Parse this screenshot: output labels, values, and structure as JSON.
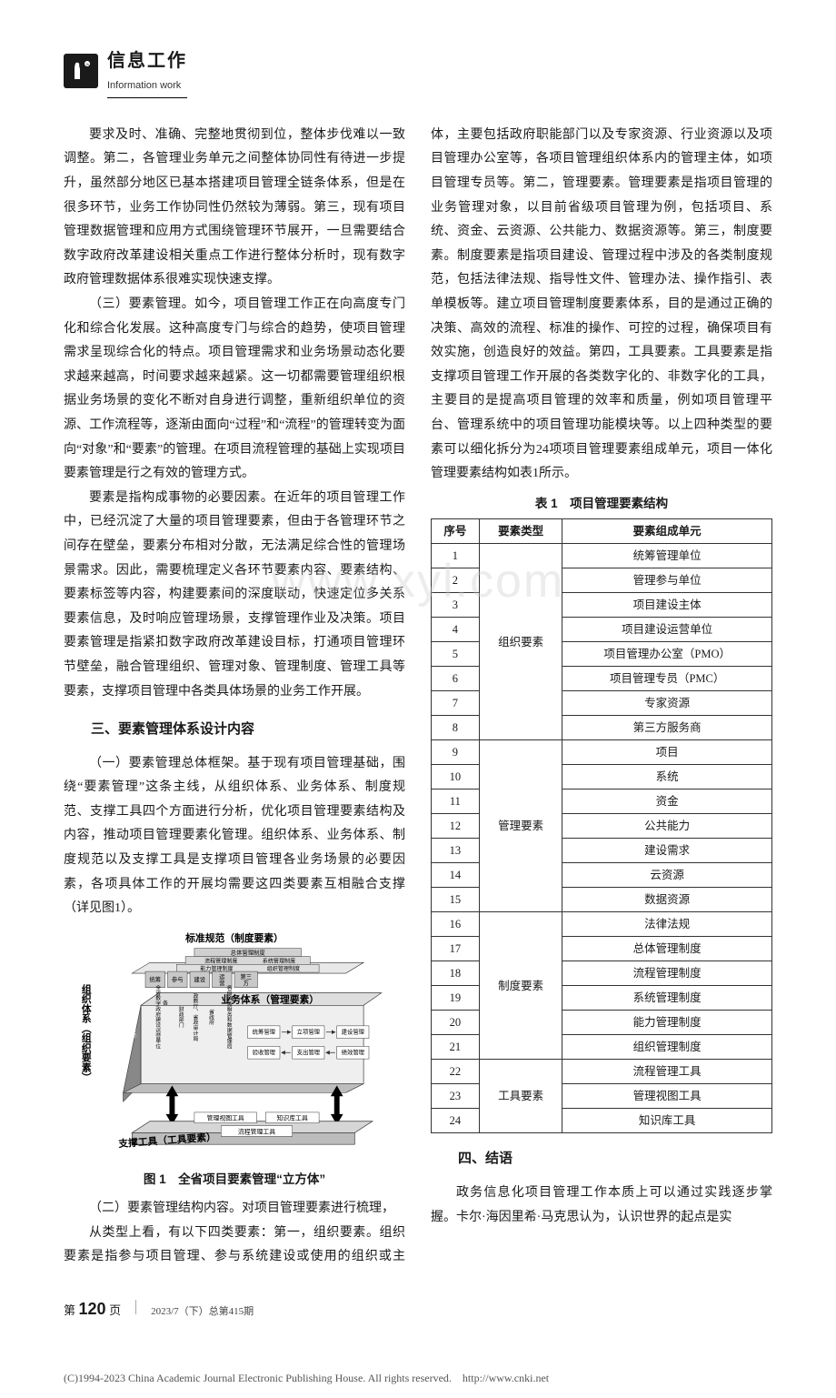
{
  "header": {
    "cn": "信息工作",
    "en": "Information work"
  },
  "watermark": "www.xyl.com",
  "left_paras": [
    "要求及时、准确、完整地贯彻到位，整体步伐难以一致调整。第二，各管理业务单元之间整体协同性有待进一步提升，虽然部分地区已基本搭建项目管理全链条体系，但是在很多环节，业务工作协同性仍然较为薄弱。第三，现有项目管理数据管理和应用方式围绕管理环节展开，一旦需要结合数字政府改革建设相关重点工作进行整体分析时，现有数字政府管理数据体系很难实现快速支撑。",
    "（三）要素管理。如今，项目管理工作正在向高度专门化和综合化发展。这种高度专门与综合的趋势，使项目管理需求呈现综合化的特点。项目管理需求和业务场景动态化要求越来越高，时间要求越来越紧。这一切都需要管理组织根据业务场景的变化不断对自身进行调整，重新组织单位的资源、工作流程等，逐渐由面向“过程”和“流程”的管理转变为面向“对象”和“要素”的管理。在项目流程管理的基础上实现项目要素管理是行之有效的管理方式。",
    "要素是指构成事物的必要因素。在近年的项目管理工作中，已经沉淀了大量的项目管理要素，但由于各管理环节之间存在壁垒，要素分布相对分散，无法满足综合性的管理场景需求。因此，需要梳理定义各环节要素内容、要素结构、要素标签等内容，构建要素间的深度联动，快速定位多关系要素信息，及时响应管理场景，支撑管理作业及决策。项目要素管理是指紧扣数字政府改革建设目标，打通项目管理环节壁垒，融合管理组织、管理对象、管理制度、管理工具等要素，支撑项目管理中各类具体场景的业务工作开展。"
  ],
  "section3_title": "三、要素管理体系设计内容",
  "section3_para1": "（一）要素管理总体框架。基于现有项目管理基础，围绕“要素管理”这条主线，从组织体系、业务体系、制度规范、支撑工具四个方面进行分析，优化项目管理要素结构及内容，推动项目管理要素化管理。组织体系、业务体系、制度规范以及支撑工具是支撑项目管理各业务场景的必要因素，各项具体工作的开展均需要这四类要素互相融合支撑（详见图1）。",
  "figure1_caption": "图 1　全省项目要素管理“立方体”",
  "figure1_labels": {
    "top": "标准规范（制度要素）",
    "left": "组织体系（组织要素）",
    "middle": "业务体系（管理要素）",
    "bottom_left": "支撑工具（工具要素）",
    "box_top1": "总体管理制度",
    "box_top2": "流程管理制度",
    "box_top3": "系统管理制度",
    "box_top4": "能力管理制度",
    "box_top5": "组织管理制度",
    "cubes_row1": [
      "统筹",
      "参与",
      "建设",
      "运营",
      "第三方"
    ],
    "cubes_label": "各组织实体",
    "vert_labels": [
      "全省数字政府建设运营单位",
      "第三方资源池",
      "财政部门",
      "政数厅",
      "省政府",
      "各级政务服务和数据管理局"
    ],
    "mid_row": [
      "统筹管理",
      "",
      "立项管理",
      "",
      "建设管理"
    ],
    "mid_row2": [
      "验收管理",
      "",
      "支出管理",
      "",
      "绩效管理"
    ],
    "bottom_boxes": [
      "管理视图工具",
      "知识库工具",
      "流程管理工具"
    ]
  },
  "para_2_after_fig": "（二）要素管理结构内容。对项目管理要素进行梳理，",
  "right_para1": "从类型上看，有以下四类要素：第一，组织要素。组织要素是指参与项目管理、参与系统建设或使用的组织或主体，主要包括政府职能部门以及专家资源、行业资源以及项目管理办公室等，各项目管理组织体系内的管理主体，如项目管理专员等。第二，管理要素。管理要素是指项目管理的业务管理对象，以目前省级项目管理为例，包括项目、系统、资金、云资源、公共能力、数据资源等。第三，制度要素。制度要素是指项目建设、管理过程中涉及的各类制度规范，包括法律法规、指导性文件、管理办法、操作指引、表单模板等。建立项目管理制度要素体系，目的是通过正确的决策、高效的流程、标准的操作、可控的过程，确保项目有效实施，创造良好的效益。第四，工具要素。工具要素是指支撑项目管理工作开展的各类数字化的、非数字化的工具，主要目的是提高项目管理的效率和质量，例如项目管理平台、管理系统中的项目管理功能模块等。以上四种类型的要素可以细化拆分为24项项目管理要素组成单元，项目一体化管理要素结构如表1所示。",
  "table1_caption": "表 1　项目管理要素结构",
  "table1": {
    "headers": [
      "序号",
      "要素类型",
      "要素组成单元"
    ],
    "groups": [
      {
        "type": "组织要素",
        "rows": [
          {
            "n": "1",
            "u": "统筹管理单位"
          },
          {
            "n": "2",
            "u": "管理参与单位"
          },
          {
            "n": "3",
            "u": "项目建设主体"
          },
          {
            "n": "4",
            "u": "项目建设运营单位"
          },
          {
            "n": "5",
            "u": "项目管理办公室（PMO）"
          },
          {
            "n": "6",
            "u": "项目管理专员（PMC）"
          },
          {
            "n": "7",
            "u": "专家资源"
          },
          {
            "n": "8",
            "u": "第三方服务商"
          }
        ]
      },
      {
        "type": "管理要素",
        "rows": [
          {
            "n": "9",
            "u": "项目"
          },
          {
            "n": "10",
            "u": "系统"
          },
          {
            "n": "11",
            "u": "资金"
          },
          {
            "n": "12",
            "u": "公共能力"
          },
          {
            "n": "13",
            "u": "建设需求"
          },
          {
            "n": "14",
            "u": "云资源"
          },
          {
            "n": "15",
            "u": "数据资源"
          }
        ]
      },
      {
        "type": "制度要素",
        "rows": [
          {
            "n": "16",
            "u": "法律法规"
          },
          {
            "n": "17",
            "u": "总体管理制度"
          },
          {
            "n": "18",
            "u": "流程管理制度"
          },
          {
            "n": "19",
            "u": "系统管理制度"
          },
          {
            "n": "20",
            "u": "能力管理制度"
          },
          {
            "n": "21",
            "u": "组织管理制度"
          }
        ]
      },
      {
        "type": "工具要素",
        "rows": [
          {
            "n": "22",
            "u": "流程管理工具"
          },
          {
            "n": "23",
            "u": "管理视图工具"
          },
          {
            "n": "24",
            "u": "知识库工具"
          }
        ]
      }
    ]
  },
  "section4_title": "四、结语",
  "section4_para": "政务信息化项目管理工作本质上可以通过实践逐步掌握。卡尔·海因里希·马克思认为，认识世界的起点是实",
  "footer": {
    "page_label": "第",
    "page_num": "120",
    "page_suffix": "页",
    "issue": "2023/7（下）总第415期"
  },
  "copyright": {
    "text": "(C)1994-2023 China Academic Journal Electronic Publishing House. All rights reserved.",
    "url": "http://www.cnki.net"
  },
  "colors": {
    "text": "#1a1a1a",
    "border": "#333333",
    "watermark": "rgba(200,200,200,0.35)",
    "icon_bg": "#1a1a1a",
    "fig_fill_light": "#e8e8e8",
    "fig_fill_mid": "#c8c8c8",
    "fig_fill_dark": "#888888"
  }
}
